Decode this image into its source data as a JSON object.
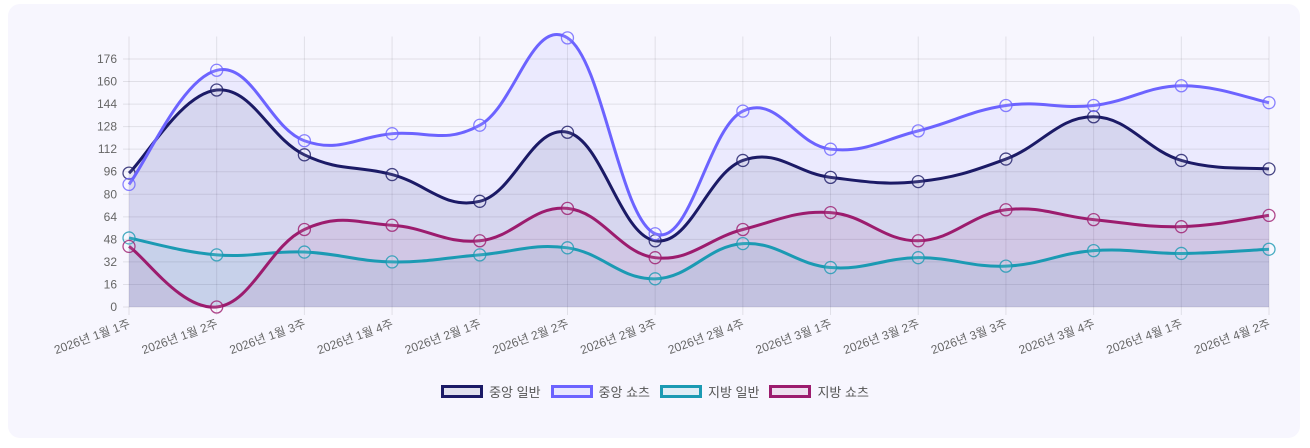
{
  "chart_data": {
    "type": "line",
    "title": "",
    "xlabel": "",
    "ylabel": "",
    "ylim": [
      0,
      192
    ],
    "yticks": [
      0,
      16,
      32,
      48,
      64,
      80,
      96,
      112,
      128,
      144,
      160,
      176
    ],
    "grid": true,
    "legend_position": "bottom",
    "categories": [
      "2026년 1월 1주",
      "2026년 1월 2주",
      "2026년 1월 3주",
      "2026년 1월 4주",
      "2026년 2월 1주",
      "2026년 2월 2주",
      "2026년 2월 3주",
      "2026년 2월 4주",
      "2026년 3월 1주",
      "2026년 3월 2주",
      "2026년 3월 3주",
      "2026년 3월 4주",
      "2026년 4월 1주",
      "2026년 4월 2주"
    ],
    "series": [
      {
        "name": "중앙 일반",
        "color": "#1b1a66",
        "fill": "rgba(27,26,102,0.10)",
        "values": [
          95,
          154,
          108,
          94,
          75,
          124,
          47,
          104,
          92,
          89,
          105,
          135,
          104,
          98
        ]
      },
      {
        "name": "중앙 쇼츠",
        "color": "#6c63ff",
        "fill": "rgba(108,99,255,0.08)",
        "values": [
          87,
          168,
          118,
          123,
          129,
          191,
          52,
          139,
          112,
          125,
          143,
          143,
          157,
          145
        ]
      },
      {
        "name": "지방 일반",
        "color": "#1b9ab3",
        "fill": "rgba(27,154,179,0.08)",
        "values": [
          49,
          37,
          39,
          32,
          37,
          42,
          20,
          45,
          28,
          35,
          29,
          40,
          38,
          41
        ]
      },
      {
        "name": "지방 쇼츠",
        "color": "#9c1c6e",
        "fill": "rgba(156,28,110,0.08)",
        "values": [
          43,
          0,
          55,
          58,
          47,
          70,
          35,
          55,
          67,
          47,
          69,
          62,
          57,
          65
        ]
      }
    ]
  }
}
